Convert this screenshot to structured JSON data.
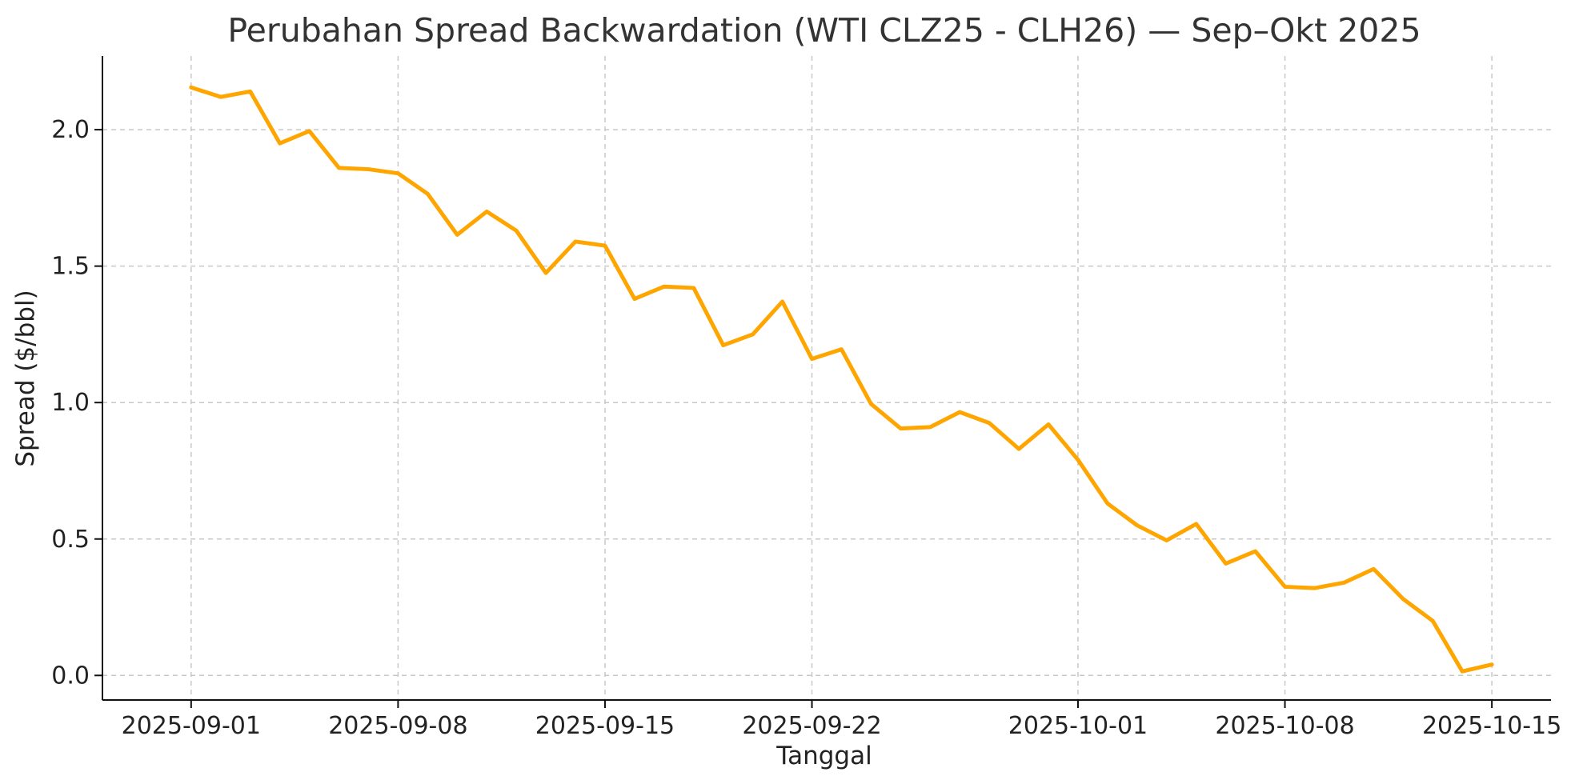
{
  "chart_data": {
    "type": "line",
    "title": "Perubahan Spread Backwardation (WTI CLZ25 - CLH26) — Sep–Okt 2025",
    "xlabel": "Tanggal",
    "ylabel": "Spread ($/bbl)",
    "x_ticks": [
      "2025-09-01",
      "2025-09-08",
      "2025-09-15",
      "2025-09-22",
      "2025-10-01",
      "2025-10-08",
      "2025-10-15"
    ],
    "y_ticks": [
      "0.0",
      "0.5",
      "1.0",
      "1.5",
      "2.0"
    ],
    "xlim": [
      "2025-08-29",
      "2025-10-17"
    ],
    "ylim": [
      -0.09,
      2.27
    ],
    "grid": true,
    "color": "#FFA500",
    "series": [
      {
        "x": [
          "2025-09-01",
          "2025-09-02",
          "2025-09-03",
          "2025-09-04",
          "2025-09-05",
          "2025-09-06",
          "2025-09-07",
          "2025-09-08",
          "2025-09-09",
          "2025-09-10",
          "2025-09-11",
          "2025-09-12",
          "2025-09-13",
          "2025-09-14",
          "2025-09-15",
          "2025-09-16",
          "2025-09-17",
          "2025-09-18",
          "2025-09-19",
          "2025-09-20",
          "2025-09-21",
          "2025-09-22",
          "2025-09-23",
          "2025-09-24",
          "2025-09-25",
          "2025-09-26",
          "2025-09-27",
          "2025-09-28",
          "2025-09-29",
          "2025-09-30",
          "2025-10-01",
          "2025-10-02",
          "2025-10-03",
          "2025-10-04",
          "2025-10-05",
          "2025-10-06",
          "2025-10-07",
          "2025-10-08",
          "2025-10-09",
          "2025-10-10",
          "2025-10-11",
          "2025-10-12",
          "2025-10-13",
          "2025-10-14",
          "2025-10-15"
        ],
        "y": [
          2.155,
          2.12,
          2.14,
          1.95,
          1.995,
          1.86,
          1.855,
          1.84,
          1.765,
          1.615,
          1.7,
          1.63,
          1.475,
          1.59,
          1.575,
          1.38,
          1.425,
          1.42,
          1.21,
          1.25,
          1.37,
          1.16,
          1.195,
          0.995,
          0.905,
          0.91,
          0.965,
          0.925,
          0.83,
          0.92,
          0.79,
          0.63,
          0.55,
          0.495,
          0.555,
          0.41,
          0.455,
          0.325,
          0.32,
          0.34,
          0.39,
          0.28,
          0.2,
          0.015,
          0.04
        ]
      }
    ]
  }
}
